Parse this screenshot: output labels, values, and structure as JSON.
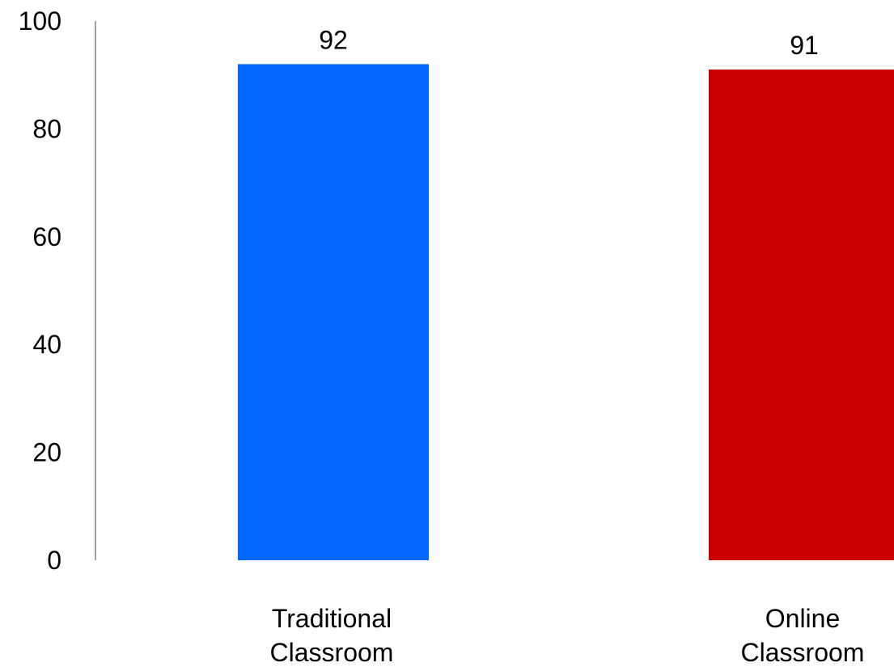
{
  "chart_data": {
    "type": "bar",
    "categories": [
      [
        "Traditional",
        "Classroom"
      ],
      [
        "Online",
        "Classroom"
      ]
    ],
    "values": [
      92,
      91
    ],
    "data_labels": [
      "92",
      "91"
    ],
    "colors": [
      "#0066ff",
      "#cc0000"
    ],
    "ylim": [
      0,
      100
    ],
    "y_ticks": [
      0,
      20,
      40,
      60,
      80,
      100
    ],
    "title": "",
    "xlabel": "",
    "ylabel": "",
    "grid": false,
    "legend": "none"
  }
}
